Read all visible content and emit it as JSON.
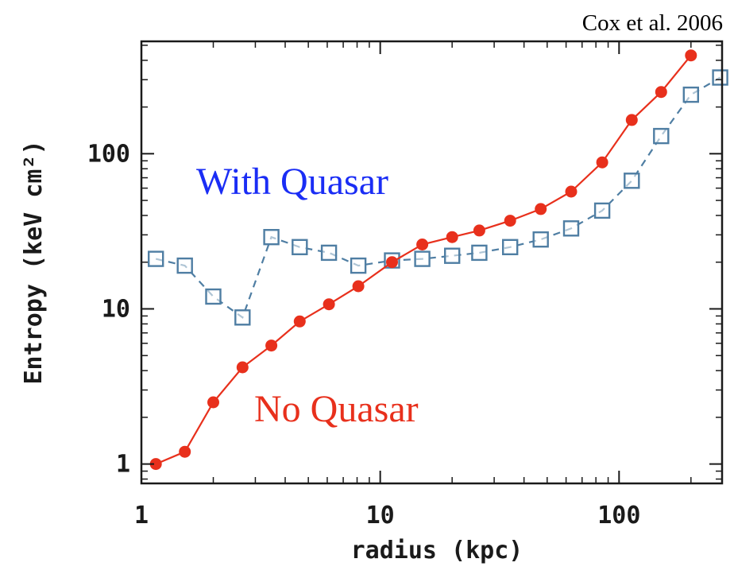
{
  "credit": "Cox et al. 2006",
  "chart_data": {
    "type": "line",
    "xscale": "log",
    "yscale": "log",
    "xlim": [
      1,
      270
    ],
    "ylim": [
      0.75,
      530
    ],
    "xlabel": "radius (kpc)",
    "ylabel": "Entropy (keV cm²)",
    "x_ticks": [
      {
        "value": 1,
        "label": "1"
      },
      {
        "value": 10,
        "label": "10"
      },
      {
        "value": 100,
        "label": "100"
      }
    ],
    "y_ticks": [
      {
        "value": 1,
        "label": "1"
      },
      {
        "value": 10,
        "label": "10"
      },
      {
        "value": 100,
        "label": "100"
      }
    ],
    "grid": false,
    "series": [
      {
        "name": "No Quasar",
        "color": "#e8301c",
        "line": "solid",
        "marker": "filled-circle",
        "x": [
          1.15,
          1.52,
          2.0,
          2.65,
          3.5,
          4.6,
          6.1,
          8.1,
          11.2,
          15,
          20,
          26,
          35,
          47,
          63,
          85,
          113,
          150,
          200
        ],
        "y": [
          1.0,
          1.2,
          2.5,
          4.2,
          5.8,
          8.3,
          10.7,
          14,
          20,
          26,
          29,
          32,
          37,
          44,
          57,
          88,
          165,
          250,
          430
        ]
      },
      {
        "name": "With Quasar",
        "color": "#4f7ea3",
        "line": "dashed",
        "marker": "open-square",
        "x": [
          1.15,
          1.52,
          2.0,
          2.65,
          3.5,
          4.6,
          6.1,
          8.1,
          11.2,
          15,
          20,
          26,
          35,
          47,
          63,
          85,
          113,
          150,
          200,
          265
        ],
        "y": [
          21,
          19,
          12,
          8.8,
          29,
          25,
          23,
          19,
          20.5,
          21,
          22,
          23,
          25,
          28,
          33,
          43,
          67,
          130,
          240,
          310
        ]
      }
    ],
    "annotations": [
      {
        "text": "With Quasar",
        "color": "#1a2df5"
      },
      {
        "text": "No Quasar",
        "color": "#e8301c"
      }
    ]
  }
}
